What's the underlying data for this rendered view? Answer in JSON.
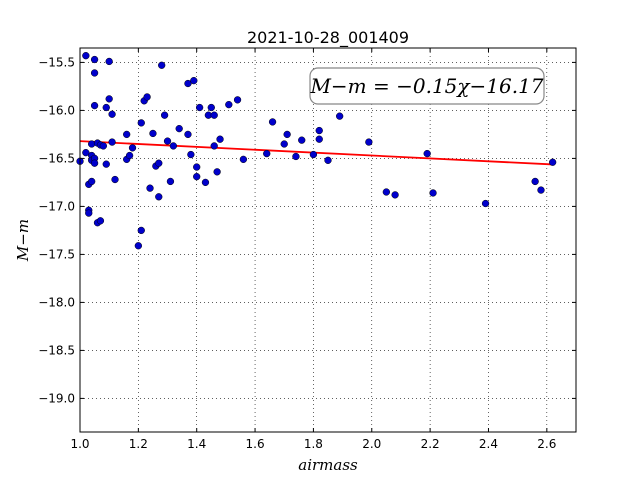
{
  "chart_data": {
    "type": "scatter",
    "title": "2021-10-28_001409",
    "xlabel": "airmass",
    "ylabel": "M−m",
    "xlim": [
      1.0,
      2.7
    ],
    "ylim": [
      -19.35,
      -15.35
    ],
    "y_inverted": true,
    "grid": true,
    "xticks": [
      1.0,
      1.2,
      1.4,
      1.6,
      1.8,
      2.0,
      2.2,
      2.4,
      2.6
    ],
    "xtick_labels": [
      "1.0",
      "1.2",
      "1.4",
      "1.6",
      "1.8",
      "2.0",
      "2.2",
      "2.4",
      "2.6"
    ],
    "yticks": [
      -15.5,
      -16.0,
      -16.5,
      -17.0,
      -17.5,
      -18.0,
      -18.5,
      -19.0
    ],
    "ytick_labels": [
      "−15.5",
      "−16.0",
      "−16.5",
      "−17.0",
      "−17.5",
      "−18.0",
      "−18.5",
      "−19.0"
    ],
    "annotation": "M−m = −0.15χ−16.17",
    "fit": {
      "slope": -0.15,
      "intercept": -16.17,
      "x_range": [
        1.0,
        2.62
      ],
      "color": "#ff0000"
    },
    "point_color": "#0000cc",
    "points": [
      [
        1.0,
        -16.53
      ],
      [
        1.02,
        -15.43
      ],
      [
        1.02,
        -16.44
      ],
      [
        1.03,
        -16.77
      ],
      [
        1.03,
        -17.04
      ],
      [
        1.03,
        -17.07
      ],
      [
        1.04,
        -16.74
      ],
      [
        1.04,
        -16.47
      ],
      [
        1.04,
        -16.52
      ],
      [
        1.04,
        -16.35
      ],
      [
        1.05,
        -15.61
      ],
      [
        1.05,
        -15.47
      ],
      [
        1.05,
        -16.5
      ],
      [
        1.05,
        -16.55
      ],
      [
        1.05,
        -15.95
      ],
      [
        1.06,
        -16.34
      ],
      [
        1.06,
        -17.17
      ],
      [
        1.07,
        -17.15
      ],
      [
        1.07,
        -16.36
      ],
      [
        1.08,
        -16.37
      ],
      [
        1.09,
        -16.56
      ],
      [
        1.09,
        -15.97
      ],
      [
        1.1,
        -15.49
      ],
      [
        1.1,
        -15.88
      ],
      [
        1.11,
        -16.04
      ],
      [
        1.11,
        -16.33
      ],
      [
        1.12,
        -16.72
      ],
      [
        1.16,
        -16.25
      ],
      [
        1.16,
        -16.51
      ],
      [
        1.17,
        -16.47
      ],
      [
        1.18,
        -16.39
      ],
      [
        1.2,
        -17.41
      ],
      [
        1.21,
        -17.25
      ],
      [
        1.21,
        -16.13
      ],
      [
        1.22,
        -15.9
      ],
      [
        1.23,
        -15.86
      ],
      [
        1.24,
        -16.81
      ],
      [
        1.25,
        -16.24
      ],
      [
        1.26,
        -16.58
      ],
      [
        1.27,
        -16.55
      ],
      [
        1.27,
        -16.9
      ],
      [
        1.28,
        -15.53
      ],
      [
        1.29,
        -16.05
      ],
      [
        1.3,
        -16.32
      ],
      [
        1.31,
        -16.74
      ],
      [
        1.32,
        -16.37
      ],
      [
        1.34,
        -16.19
      ],
      [
        1.37,
        -16.25
      ],
      [
        1.37,
        -15.72
      ],
      [
        1.38,
        -16.46
      ],
      [
        1.39,
        -15.69
      ],
      [
        1.4,
        -16.69
      ],
      [
        1.4,
        -16.59
      ],
      [
        1.41,
        -15.97
      ],
      [
        1.43,
        -16.75
      ],
      [
        1.44,
        -16.05
      ],
      [
        1.45,
        -15.97
      ],
      [
        1.46,
        -16.05
      ],
      [
        1.46,
        -16.37
      ],
      [
        1.47,
        -16.64
      ],
      [
        1.48,
        -16.3
      ],
      [
        1.51,
        -15.94
      ],
      [
        1.54,
        -15.89
      ],
      [
        1.56,
        -16.51
      ],
      [
        1.64,
        -16.45
      ],
      [
        1.66,
        -16.12
      ],
      [
        1.7,
        -16.35
      ],
      [
        1.71,
        -16.25
      ],
      [
        1.74,
        -16.48
      ],
      [
        1.76,
        -16.31
      ],
      [
        1.8,
        -16.46
      ],
      [
        1.82,
        -16.21
      ],
      [
        1.82,
        -16.3
      ],
      [
        1.85,
        -16.52
      ],
      [
        1.89,
        -16.06
      ],
      [
        1.99,
        -16.33
      ],
      [
        2.05,
        -16.85
      ],
      [
        2.08,
        -16.88
      ],
      [
        2.19,
        -16.45
      ],
      [
        2.21,
        -16.86
      ],
      [
        2.39,
        -16.97
      ],
      [
        2.56,
        -16.74
      ],
      [
        2.58,
        -16.83
      ],
      [
        2.62,
        -16.54
      ]
    ]
  }
}
